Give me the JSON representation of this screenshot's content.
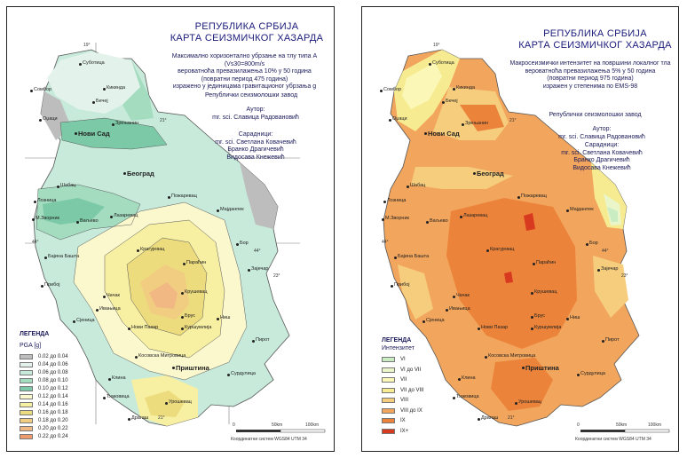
{
  "left_map": {
    "title_line1": "РЕПУБЛИКА СРБИЈА",
    "title_line2": "КАРТА СЕИЗМИЧКОГ ХАЗАРДА",
    "description": [
      "Максимално хоризонтално убрзање на тлу типа А (Vs30=800m/s",
      "вероватноћа превазилажења 10% у 50 година",
      "(повратни период 475 година)",
      "изражено у јединицама гравитационог убрзања g"
    ],
    "institution": "Републички сеизмолошки завод",
    "author_label": "Аутор:",
    "author": "mr. sci. Славица Радовановић",
    "coauthors_label": "Сарадници:",
    "coauthors": [
      "mr. sci. Светлана Ковачевић",
      "Бранко Драгичевић",
      "Видосава Кнежевић"
    ],
    "legend_title": "ЛЕГЕНДА",
    "legend_unit": "PGA [g]",
    "legend": [
      {
        "label": "0.02 до 0.04",
        "color": "#bdbdbd"
      },
      {
        "label": "0.04 до 0.06",
        "color": "#e3f3ec"
      },
      {
        "label": "0.06 до 0.08",
        "color": "#c7eadb"
      },
      {
        "label": "0.08 до 0.10",
        "color": "#a4dcc0"
      },
      {
        "label": "0.10 до 0.12",
        "color": "#7bc9a6"
      },
      {
        "label": "0.12 до 0.14",
        "color": "#fbf8ce"
      },
      {
        "label": "0.14 до 0.16",
        "color": "#f7efa2"
      },
      {
        "label": "0.16 до 0.18",
        "color": "#eddc7d"
      },
      {
        "label": "0.18 до 0.20",
        "color": "#f1cd82"
      },
      {
        "label": "0.20 до 0.22",
        "color": "#f1b883"
      },
      {
        "label": "0.22 до 0.24",
        "color": "#ee9c6d"
      }
    ],
    "scale_labels": [
      "0",
      "50km",
      "100km"
    ],
    "coord_system": "Координатни систем WGS84 UTM 34",
    "cities": [
      "Суботица",
      "Кикинда",
      "Сомбор",
      "Бечеј",
      "Оџаци",
      "Зрењанин",
      "Нови Сад",
      "Београд",
      "Шабац",
      "Пожаревац",
      "Лозница",
      "Ваљево",
      "Лазаревац",
      "Мајданпек",
      "М.Зворник",
      "Бор",
      "Бајина Башта",
      "Крагујевац",
      "Параћин",
      "Зајечар",
      "Прибој",
      "Чачак",
      "Ивањица",
      "Крушевац",
      "Сјеница",
      "Брус",
      "Ниш",
      "Нови Пазар",
      "Куршумлија",
      "Пирот",
      "Косовска Митровица",
      "Приштина",
      "Клина",
      "Сурдулица",
      "Урошевац",
      "Ђаковица",
      "Драгаш"
    ],
    "degrees": [
      "21°",
      "19°",
      "44°",
      "44°",
      "21°",
      "23°"
    ]
  },
  "right_map": {
    "title_line1": "РЕПУБЛИКА СРБИЈА",
    "title_line2": "КАРТА СЕИЗМИЧКОГ ХАЗАРДА",
    "description": [
      "Макросеизмички интензитет на површини локалног тла",
      "вероватноћа превазилажења 5% у 50 година",
      "(повратни период 975 година)",
      "изражен у степенима по EMS-98"
    ],
    "institution": "Републички сеизмолошки завод",
    "author_label": "Аутор:",
    "author": "mr. sci. Славица Радовановић",
    "coauthors_label": "Сарадници:",
    "coauthors": [
      "mr. sci. Светлана Ковачевић",
      "Бранко Драгичевић",
      "Видосава Кнежевић"
    ],
    "legend_title": "ЛЕГЕНДА",
    "legend_unit": "Интензитет",
    "legend": [
      {
        "label": "VI",
        "color": "#c9ecc2"
      },
      {
        "label": "VI до VII",
        "color": "#eaf6c9"
      },
      {
        "label": "VII",
        "color": "#fbf7b6"
      },
      {
        "label": "VII до VIII",
        "color": "#f6eb91"
      },
      {
        "label": "VIII",
        "color": "#f5cd7d"
      },
      {
        "label": "VIII до IX",
        "color": "#f2a55c"
      },
      {
        "label": "IX",
        "color": "#ec833a"
      },
      {
        "label": "IX+",
        "color": "#d83a1f"
      }
    ],
    "scale_labels": [
      "0",
      "50km",
      "100km"
    ],
    "coord_system": "Координатни систем WGS84 UTM 34",
    "cities": [
      "Суботица",
      "Кикинда",
      "Сомбор",
      "Бечеј",
      "Оџаци",
      "Зрењанин",
      "Нови Сад",
      "Београд",
      "Шабац",
      "Пожаревац",
      "Лозница",
      "Ваљево",
      "Лазаревац",
      "Мајданпек",
      "М.Зворник",
      "Бор",
      "Бајина Башта",
      "Крагујевац",
      "Параћин",
      "Зајечар",
      "Прибој",
      "Чачак",
      "Ивањица",
      "Крушевац",
      "Сјеница",
      "Брус",
      "Ниш",
      "Нови Пазар",
      "Куршумлија",
      "Пирот",
      "Косовска Митровица",
      "Приштина",
      "Клина",
      "Сурдулица",
      "Урошевац",
      "Ђаковица",
      "Драгаш"
    ],
    "degrees": [
      "21°",
      "19°",
      "44°",
      "44°",
      "21°",
      "23°"
    ]
  }
}
